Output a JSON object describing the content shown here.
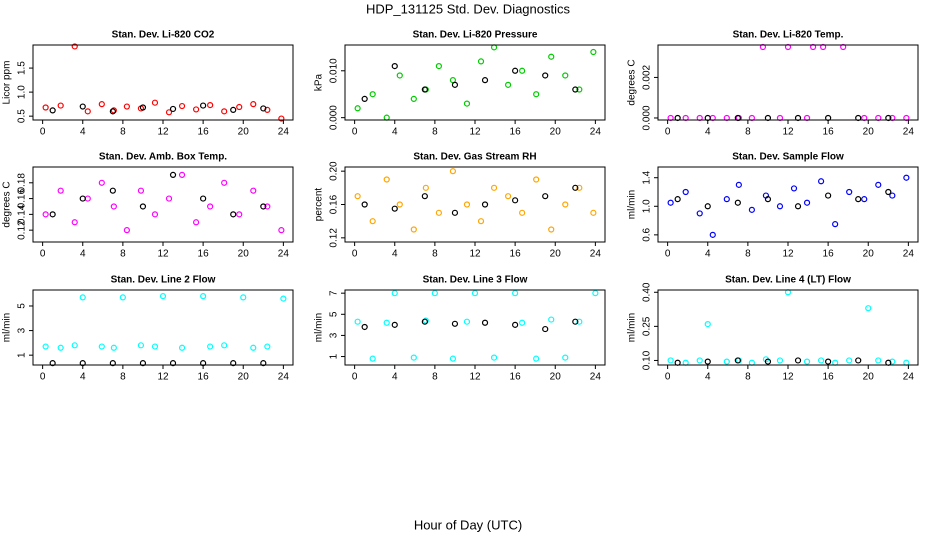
{
  "title": "HDP_131125  Std. Dev. Diagnostics",
  "xlabel": "Hour of Day (UTC)",
  "chart_data": [
    {
      "type": "scatter",
      "title": "Stan. Dev. Li-820 CO2",
      "ylabel": "Licor ppm",
      "xlim": [
        -0.96,
        24.96
      ],
      "xticks": [
        0,
        4,
        8,
        12,
        16,
        20,
        24
      ],
      "ylim": [
        0.42,
        1.98
      ],
      "yticks": [
        0.5,
        {
          "value": 1.0,
          "label": "1.0"
        },
        1.5
      ],
      "series": [
        {
          "color": "#ff0000",
          "x": [
            0.3,
            1.8,
            3.2,
            4.5,
            5.9,
            7.1,
            8.4,
            9.8,
            11.2,
            12.6,
            13.9,
            15.3,
            16.7,
            18.1,
            19.6,
            21.0,
            22.4,
            23.8
          ],
          "values": [
            0.68,
            0.72,
            1.95,
            0.6,
            0.75,
            0.62,
            0.7,
            0.66,
            0.78,
            0.58,
            0.71,
            0.64,
            0.73,
            0.6,
            0.69,
            0.75,
            0.63,
            0.45
          ]
        },
        {
          "color": "#000000",
          "x": [
            1,
            4,
            7,
            10,
            13,
            16,
            19,
            22
          ],
          "values": [
            0.62,
            0.7,
            0.6,
            0.68,
            0.65,
            0.72,
            0.63,
            0.66
          ]
        }
      ]
    },
    {
      "type": "scatter",
      "title": "Stan. Dev. Li-820 Pressure",
      "ylabel": "kPa",
      "xlim": [
        -0.96,
        24.96
      ],
      "xticks": [
        0,
        4,
        8,
        12,
        16,
        20,
        24
      ],
      "ylim": [
        -0.0005,
        0.0155
      ],
      "yticks": [
        {
          "value": 0,
          "label": "0.000"
        },
        {
          "value": 0.01,
          "label": "0.010"
        }
      ],
      "series": [
        {
          "color": "#00cc00",
          "x": [
            0.3,
            1.8,
            3.2,
            4.5,
            5.9,
            7.1,
            8.4,
            9.8,
            11.2,
            12.6,
            13.9,
            15.3,
            16.7,
            18.1,
            19.6,
            21.0,
            22.4,
            23.8
          ],
          "values": [
            0.002,
            0.005,
            0.0,
            0.009,
            0.004,
            0.006,
            0.011,
            0.008,
            0.003,
            0.012,
            0.015,
            0.007,
            0.01,
            0.005,
            0.013,
            0.009,
            0.006,
            0.014
          ]
        },
        {
          "color": "#000000",
          "x": [
            1,
            4,
            7,
            10,
            13,
            16,
            19,
            22
          ],
          "values": [
            0.004,
            0.011,
            0.006,
            0.007,
            0.008,
            0.01,
            0.009,
            0.006
          ]
        }
      ]
    },
    {
      "type": "scatter",
      "title": "Stan. Dev. Li-820 Temp.",
      "ylabel": "degrees C",
      "xlim": [
        -0.96,
        24.96
      ],
      "xticks": [
        0,
        4,
        8,
        12,
        16,
        20,
        24
      ],
      "ylim": [
        -0.0001,
        0.0036
      ],
      "yticks": [
        {
          "value": 0,
          "label": "0.000"
        },
        0.002
      ],
      "series": [
        {
          "color": "#ff00ff",
          "x": [
            0.3,
            1.8,
            3.2,
            4.5,
            5.9,
            7.1,
            8.4,
            9.5,
            11.2,
            12.0,
            13.9,
            14.5,
            15.5,
            17.5,
            19.6,
            21.0,
            22.4,
            23.8
          ],
          "values": [
            0,
            0,
            0,
            0,
            0,
            0,
            0,
            0.0035,
            0,
            0.0035,
            0,
            0.0035,
            0.0035,
            0.0035,
            0,
            0,
            0,
            0
          ]
        },
        {
          "color": "#000000",
          "x": [
            1,
            4,
            7,
            10,
            13,
            16,
            19,
            22
          ],
          "values": [
            0,
            0,
            0,
            0,
            0,
            0,
            0,
            0
          ]
        }
      ]
    },
    {
      "type": "scatter",
      "title": "Stan. Dev. Amb. Box Temp.",
      "ylabel": "degrees C",
      "xlim": [
        -0.96,
        24.96
      ],
      "xticks": [
        0,
        4,
        8,
        12,
        16,
        20,
        24
      ],
      "ylim": [
        0.105,
        0.2
      ],
      "yticks": [
        0.12,
        0.14,
        0.16,
        0.18
      ],
      "series": [
        {
          "color": "#ff00ff",
          "x": [
            0.3,
            1.8,
            3.2,
            4.5,
            5.9,
            7.1,
            8.4,
            9.8,
            11.2,
            12.6,
            13.9,
            15.3,
            16.7,
            18.1,
            19.6,
            21.0,
            22.4,
            23.8
          ],
          "values": [
            0.14,
            0.17,
            0.13,
            0.16,
            0.18,
            0.15,
            0.12,
            0.17,
            0.14,
            0.16,
            0.19,
            0.13,
            0.15,
            0.18,
            0.14,
            0.17,
            0.15,
            0.12
          ]
        },
        {
          "color": "#000000",
          "x": [
            1,
            4,
            7,
            10,
            13,
            16,
            19,
            22
          ],
          "values": [
            0.14,
            0.16,
            0.17,
            0.15,
            0.19,
            0.16,
            0.14,
            0.15
          ]
        }
      ]
    },
    {
      "type": "scatter",
      "title": "Stan. Dev. Gas Stream RH",
      "ylabel": "percent",
      "xlim": [
        -0.96,
        24.96
      ],
      "xticks": [
        0,
        4,
        8,
        12,
        16,
        20,
        24
      ],
      "ylim": [
        0.115,
        0.205
      ],
      "yticks": [
        0.12,
        0.16,
        {
          "value": 0.2,
          "label": "0.20"
        }
      ],
      "series": [
        {
          "color": "#ffa500",
          "x": [
            0.3,
            1.8,
            3.2,
            4.5,
            5.9,
            7.1,
            8.4,
            9.8,
            11.2,
            12.6,
            13.9,
            15.3,
            16.7,
            18.1,
            19.6,
            21.0,
            22.4,
            23.8
          ],
          "values": [
            0.17,
            0.14,
            0.19,
            0.16,
            0.13,
            0.18,
            0.15,
            0.2,
            0.16,
            0.14,
            0.18,
            0.17,
            0.15,
            0.19,
            0.13,
            0.16,
            0.18,
            0.15
          ]
        },
        {
          "color": "#000000",
          "x": [
            1,
            4,
            7,
            10,
            13,
            16,
            19,
            22
          ],
          "values": [
            0.16,
            0.155,
            0.17,
            0.15,
            0.16,
            0.165,
            0.17,
            0.18
          ]
        }
      ]
    },
    {
      "type": "scatter",
      "title": "Stan. Dev. Sample Flow",
      "ylabel": "ml/min",
      "xlim": [
        -0.96,
        24.96
      ],
      "xticks": [
        0,
        4,
        8,
        12,
        16,
        20,
        24
      ],
      "ylim": [
        0.5,
        1.55
      ],
      "yticks": [
        0.6,
        {
          "value": 1.0,
          "label": "1.0"
        },
        1.4
      ],
      "series": [
        {
          "color": "#0000ff",
          "x": [
            0.3,
            1.8,
            3.2,
            4.5,
            5.9,
            7.1,
            8.4,
            9.8,
            11.2,
            12.6,
            13.9,
            15.3,
            16.7,
            18.1,
            19.6,
            21.0,
            22.4,
            23.8
          ],
          "values": [
            1.05,
            1.2,
            0.9,
            0.6,
            1.1,
            1.3,
            0.95,
            1.15,
            1.0,
            1.25,
            1.05,
            1.35,
            0.75,
            1.2,
            1.1,
            1.3,
            1.15,
            1.4
          ]
        },
        {
          "color": "#000000",
          "x": [
            1,
            4,
            7,
            10,
            13,
            16,
            19,
            22
          ],
          "values": [
            1.1,
            1.0,
            1.05,
            1.1,
            1.0,
            1.15,
            1.1,
            1.2
          ]
        }
      ]
    },
    {
      "type": "scatter",
      "title": "Stan. Dev. Line 2 Flow",
      "ylabel": "ml/min",
      "xlim": [
        -0.96,
        24.96
      ],
      "xticks": [
        0,
        4,
        8,
        12,
        16,
        20,
        24
      ],
      "ylim": [
        0.2,
        6.3
      ],
      "yticks": [
        1,
        3,
        5
      ],
      "series": [
        {
          "color": "#00ffff",
          "x": [
            0.3,
            1.8,
            3.2,
            4.0,
            5.9,
            7.1,
            8.0,
            9.8,
            11.2,
            12.0,
            13.9,
            16.0,
            16.7,
            18.1,
            20.0,
            21.0,
            22.4,
            24.0
          ],
          "values": [
            1.7,
            1.6,
            1.8,
            5.7,
            1.7,
            1.6,
            5.7,
            1.8,
            1.7,
            5.8,
            1.6,
            5.8,
            1.7,
            1.8,
            5.7,
            1.6,
            1.7,
            5.6
          ]
        },
        {
          "color": "#000000",
          "x": [
            1,
            4,
            7,
            10,
            13,
            16,
            19,
            22
          ],
          "values": [
            0.35,
            0.35,
            0.35,
            0.35,
            0.35,
            0.35,
            0.35,
            0.35
          ]
        }
      ]
    },
    {
      "type": "scatter",
      "title": "Stan. Dev. Line 3 Flow",
      "ylabel": "ml/min",
      "xlim": [
        -0.96,
        24.96
      ],
      "xticks": [
        0,
        4,
        8,
        12,
        16,
        20,
        24
      ],
      "ylim": [
        0.2,
        7.3
      ],
      "yticks": [
        1,
        3,
        5,
        7
      ],
      "series": [
        {
          "color": "#00ffff",
          "x": [
            0.3,
            1.8,
            3.2,
            4.0,
            5.9,
            7.1,
            8.0,
            9.8,
            11.2,
            12.0,
            13.9,
            16.0,
            16.7,
            18.1,
            19.6,
            21.0,
            22.4,
            24.0
          ],
          "values": [
            4.3,
            0.8,
            4.2,
            7.0,
            0.9,
            4.4,
            7.0,
            0.8,
            4.3,
            7.0,
            0.9,
            7.0,
            4.2,
            0.8,
            4.5,
            0.9,
            4.3,
            7.0
          ]
        },
        {
          "color": "#000000",
          "x": [
            1,
            4,
            7,
            10,
            13,
            16,
            19,
            22
          ],
          "values": [
            3.8,
            4.0,
            4.3,
            4.1,
            4.2,
            4.0,
            3.6,
            4.3
          ]
        }
      ]
    },
    {
      "type": "scatter",
      "title": "Stan. Dev. Line 4 (LT) Flow",
      "ylabel": "ml/min",
      "xlim": [
        -0.96,
        24.96
      ],
      "xticks": [
        0,
        4,
        8,
        12,
        16,
        20,
        24
      ],
      "ylim": [
        0.08,
        0.41
      ],
      "yticks": [
        {
          "value": 0.1,
          "label": "0.10"
        },
        0.25,
        {
          "value": 0.4,
          "label": "0.40"
        }
      ],
      "series": [
        {
          "color": "#00ffff",
          "x": [
            0.3,
            1.8,
            3.2,
            4.0,
            5.9,
            7.1,
            8.4,
            9.8,
            11.2,
            12.0,
            13.9,
            15.3,
            16.7,
            18.1,
            20.0,
            21.0,
            22.4,
            23.8
          ],
          "values": [
            0.1,
            0.09,
            0.1,
            0.26,
            0.095,
            0.1,
            0.09,
            0.105,
            0.1,
            0.4,
            0.095,
            0.1,
            0.09,
            0.1,
            0.33,
            0.1,
            0.095,
            0.09
          ]
        },
        {
          "color": "#000000",
          "x": [
            1,
            4,
            7,
            10,
            13,
            16,
            19,
            22
          ],
          "values": [
            0.09,
            0.095,
            0.1,
            0.095,
            0.1,
            0.095,
            0.1,
            0.09
          ]
        }
      ]
    }
  ]
}
